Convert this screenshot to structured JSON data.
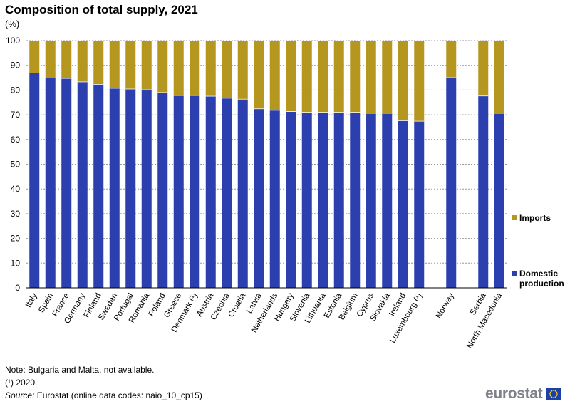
{
  "header": {
    "title": "Composition of total supply, 2021",
    "unit": "(%)"
  },
  "colors": {
    "domestic": "#2b3fae",
    "imports": "#b5961f",
    "gridline": "#9a9a9a"
  },
  "chart_data": {
    "type": "bar",
    "stacked": true,
    "title": "Composition of total supply, 2021",
    "ylabel": "(%)",
    "ylim": [
      0,
      100
    ],
    "yticks": [
      0,
      10,
      20,
      30,
      40,
      50,
      60,
      70,
      80,
      90,
      100
    ],
    "grid": true,
    "legend_position": "right",
    "categories": [
      "Italy",
      "Spain",
      "France",
      "Germany",
      "Finland",
      "Sweden",
      "Portugal",
      "Romania",
      "Poland",
      "Greece",
      "Denmark (¹)",
      "Austria",
      "Czechia",
      "Croatia",
      "Latvia",
      "Netherlands",
      "Hungary",
      "Slovenia",
      "Lithuania",
      "Estonia",
      "Belgium",
      "Cyprus",
      "Slovakia",
      "Ireland",
      "Luxembourg (¹)",
      "",
      "Norway",
      "",
      "Serbia",
      "North Macedonia"
    ],
    "series": [
      {
        "name": "Domestic production",
        "color": "#2b3fae",
        "values": [
          86.9,
          84.9,
          84.7,
          83.3,
          82.3,
          80.7,
          80.4,
          80.1,
          79.0,
          77.8,
          77.8,
          77.5,
          76.7,
          76.3,
          72.4,
          71.8,
          71.3,
          71.0,
          71.0,
          71.0,
          71.0,
          70.6,
          70.6,
          67.6,
          67.4,
          null,
          85.0,
          null,
          77.6,
          70.6
        ]
      },
      {
        "name": "Imports",
        "color": "#b5961f",
        "values": [
          13.1,
          15.1,
          15.3,
          16.7,
          17.7,
          19.3,
          19.6,
          19.9,
          21.0,
          22.2,
          22.2,
          22.5,
          23.3,
          23.7,
          27.6,
          28.2,
          28.7,
          29.0,
          29.0,
          29.0,
          29.0,
          29.4,
          29.4,
          32.4,
          32.6,
          null,
          15.0,
          null,
          22.4,
          29.4
        ]
      }
    ],
    "legend": [
      "Imports",
      "Domestic production"
    ]
  },
  "legend": {
    "imports_label": "Imports",
    "domestic_label_line1": "Domestic",
    "domestic_label_line2": "production"
  },
  "notes": {
    "line1": "Note: Bulgaria and Malta, not available.",
    "line2": "(¹) 2020.",
    "source_prefix": "Source:",
    "source_text": " Eurostat (online data codes: naio_10_cp15)"
  },
  "logo": {
    "text": "eurostat"
  }
}
